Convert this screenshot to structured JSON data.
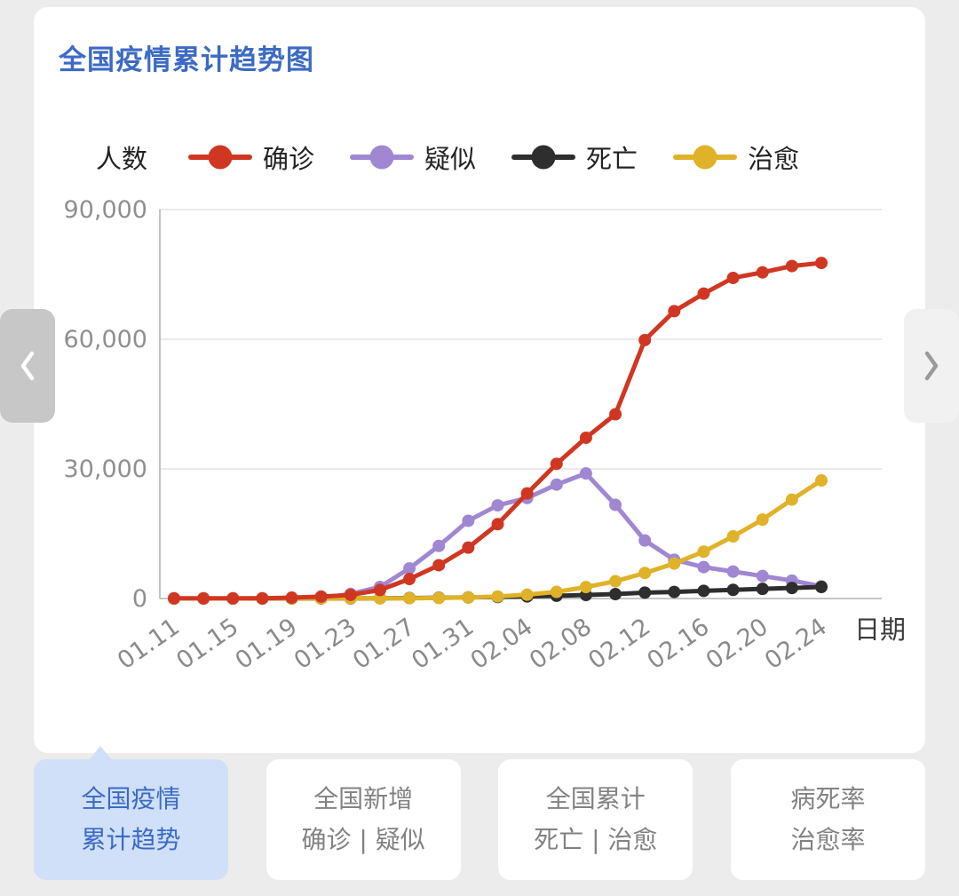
{
  "title": "全国疫情累计趋势图",
  "nav": {
    "prev_icon": "chevron-left",
    "next_icon": "chevron-right"
  },
  "tabs": [
    {
      "line1": "全国疫情",
      "line2": "累计趋势",
      "active": true
    },
    {
      "line1": "全国新增",
      "line2": "确诊 | 疑似",
      "active": false
    },
    {
      "line1": "全国累计",
      "line2": "死亡 | 治愈",
      "active": false
    },
    {
      "line1": "病死率",
      "line2": "治愈率",
      "active": false
    }
  ],
  "chart_data": {
    "type": "line",
    "title": "全国疫情累计趋势图",
    "ylabel": "人数",
    "xlabel": "日期",
    "ylim": [
      0,
      90000
    ],
    "yticks": [
      0,
      30000,
      60000,
      90000
    ],
    "ytick_labels": [
      "0",
      "30,000",
      "60,000",
      "90,000"
    ],
    "grid": true,
    "legend_position": "top",
    "x": [
      "01.11",
      "01.13",
      "01.15",
      "01.17",
      "01.19",
      "01.21",
      "01.23",
      "01.25",
      "01.27",
      "01.29",
      "01.31",
      "02.02",
      "02.04",
      "02.06",
      "02.08",
      "02.10",
      "02.12",
      "02.14",
      "02.16",
      "02.18",
      "02.20",
      "02.22",
      "02.24"
    ],
    "xtick_labels": [
      "01.11",
      "01.15",
      "01.19",
      "01.23",
      "01.27",
      "01.31",
      "02.04",
      "02.08",
      "02.12",
      "02.16",
      "02.20",
      "02.24"
    ],
    "series": [
      {
        "key": "confirmed",
        "name": "确诊",
        "color": "#d03722",
        "values": [
          41,
          41,
          41,
          62,
          198,
          440,
          830,
          1975,
          4515,
          7711,
          11791,
          17205,
          24324,
          31161,
          37198,
          42638,
          59804,
          66492,
          70548,
          74185,
          75465,
          76936,
          77658
        ]
      },
      {
        "key": "suspected",
        "name": "疑似",
        "color": "#9f87d2",
        "values": [
          0,
          0,
          0,
          0,
          0,
          37,
          1072,
          2684,
          6973,
          12167,
          17988,
          21558,
          23260,
          26359,
          28942,
          21675,
          13435,
          8969,
          7264,
          6242,
          5206,
          4148,
          2824
        ]
      },
      {
        "key": "death",
        "name": "死亡",
        "color": "#2e2e2e",
        "values": [
          1,
          1,
          2,
          2,
          3,
          9,
          25,
          56,
          106,
          170,
          259,
          361,
          490,
          637,
          811,
          1016,
          1367,
          1523,
          1770,
          2004,
          2236,
          2442,
          2663
        ]
      },
      {
        "key": "cured",
        "name": "治愈",
        "color": "#dfb229",
        "values": [
          2,
          6,
          12,
          19,
          25,
          25,
          34,
          49,
          60,
          124,
          243,
          475,
          892,
          1540,
          2649,
          3996,
          5911,
          8096,
          10844,
          14376,
          18264,
          22888,
          27323
        ]
      }
    ]
  }
}
